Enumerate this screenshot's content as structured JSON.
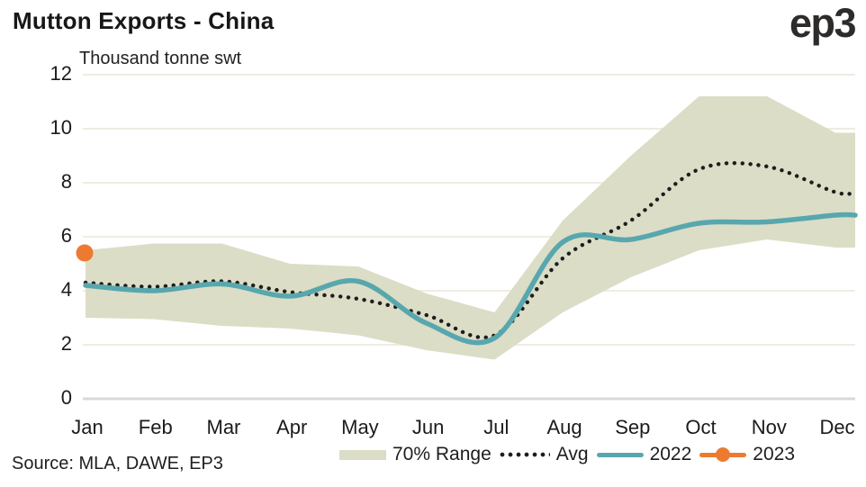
{
  "header": {
    "title": "Mutton Exports - China",
    "logo": "ep3"
  },
  "source": {
    "text": "Source: MLA, DAWE, EP3"
  },
  "colors": {
    "band": "#dcddc6",
    "avg": "#1e1e1e",
    "line2022": "#58a7ae",
    "point2023": "#ec7b30",
    "grid": "#eeede0",
    "zero_axis": "#d8d8d8",
    "text": "#1b1b1b",
    "title_text": "#171717"
  },
  "chart_data": {
    "type": "line",
    "title": "Mutton Exports - China",
    "unit_label": "Thousand tonne swt",
    "xlabel": "",
    "ylabel": "Thousand tonne swt",
    "categories": [
      "Jan",
      "Feb",
      "Mar",
      "Apr",
      "May",
      "Jun",
      "Jul",
      "Aug",
      "Sep",
      "Oct",
      "Nov",
      "Dec"
    ],
    "ylim": [
      0,
      12
    ],
    "yticks": [
      0,
      2,
      4,
      6,
      8,
      10,
      12
    ],
    "grid": "horizontal",
    "legend_position": "bottom",
    "series": [
      {
        "name": "70% Range",
        "type": "band",
        "color": "#dcddc6",
        "upper": [
          5.5,
          5.75,
          5.75,
          5.0,
          4.9,
          3.9,
          3.2,
          6.6,
          9.0,
          11.2,
          11.2,
          9.85
        ],
        "lower": [
          3.0,
          2.95,
          2.7,
          2.6,
          2.35,
          1.8,
          1.45,
          3.2,
          4.5,
          5.5,
          5.9,
          5.6
        ]
      },
      {
        "name": "Avg",
        "type": "dotted-line",
        "color": "#1e1e1e",
        "values": [
          4.3,
          4.15,
          4.35,
          3.95,
          3.7,
          3.1,
          2.35,
          5.2,
          6.6,
          8.5,
          8.6,
          7.65
        ]
      },
      {
        "name": "2022",
        "type": "line",
        "color": "#58a7ae",
        "values": [
          4.2,
          4.0,
          4.25,
          3.8,
          4.35,
          2.8,
          2.25,
          5.8,
          5.9,
          6.5,
          6.55,
          6.8
        ]
      },
      {
        "name": "2023",
        "type": "point",
        "color": "#ec7b30",
        "values": [
          5.4,
          null,
          null,
          null,
          null,
          null,
          null,
          null,
          null,
          null,
          null,
          null
        ]
      }
    ]
  }
}
